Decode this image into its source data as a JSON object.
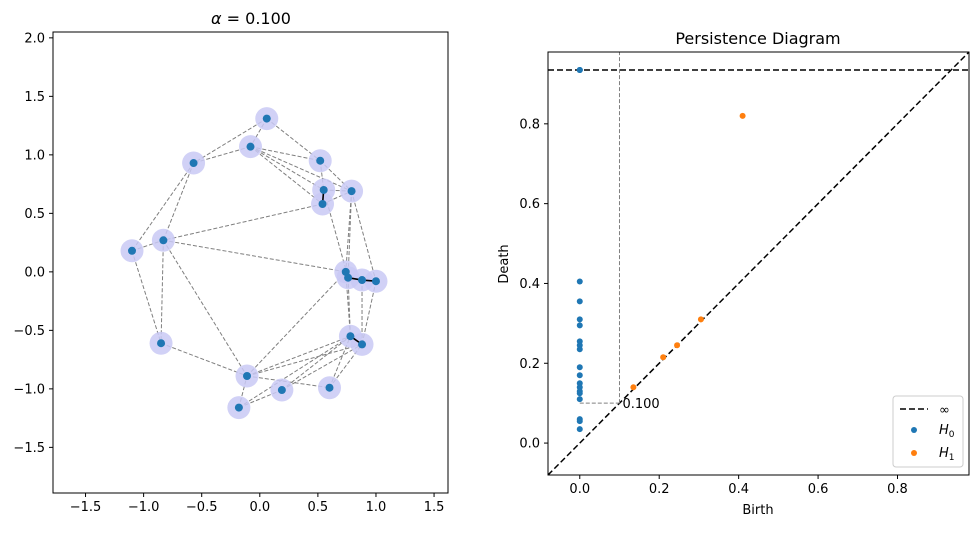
{
  "colors": {
    "h0": "#1f77b4",
    "h1": "#ff7f0e",
    "ball": "#c9c9f5",
    "edge": "#7f7f7f",
    "axis": "#000000"
  },
  "chart_data": [
    {
      "type": "scatter",
      "title": "α = 0.100",
      "title_alpha": "α",
      "title_value": " = 0.100",
      "xlabel": "",
      "ylabel": "",
      "xlim": [
        -1.78,
        1.62
      ],
      "ylim": [
        -1.89,
        2.05
      ],
      "xticks": [
        -1.5,
        -1.0,
        -0.5,
        0.0,
        0.5,
        1.0,
        1.5
      ],
      "xtick_labels": [
        "−1.5",
        "−1.0",
        "−0.5",
        "0.0",
        "0.5",
        "1.0",
        "1.5"
      ],
      "yticks": [
        -1.5,
        -1.0,
        -0.5,
        0.0,
        0.5,
        1.0,
        1.5,
        2.0
      ],
      "ytick_labels": [
        "−1.5",
        "−1.0",
        "−0.5",
        "0.0",
        "0.5",
        "1.0",
        "1.5",
        "2.0"
      ],
      "points": [
        [
          0.06,
          1.31
        ],
        [
          -0.08,
          1.07
        ],
        [
          -0.57,
          0.93
        ],
        [
          0.52,
          0.95
        ],
        [
          0.55,
          0.7
        ],
        [
          0.54,
          0.58
        ],
        [
          0.79,
          0.69
        ],
        [
          -1.1,
          0.18
        ],
        [
          -0.83,
          0.27
        ],
        [
          0.74,
          0.0
        ],
        [
          0.76,
          -0.05
        ],
        [
          0.88,
          -0.07
        ],
        [
          1.0,
          -0.08
        ],
        [
          0.78,
          -0.55
        ],
        [
          0.88,
          -0.62
        ],
        [
          -0.85,
          -0.61
        ],
        [
          -0.11,
          -0.89
        ],
        [
          0.19,
          -1.01
        ],
        [
          0.6,
          -0.99
        ],
        [
          -0.18,
          -1.16
        ]
      ],
      "edges": [
        [
          0,
          1
        ],
        [
          0,
          2
        ],
        [
          0,
          3
        ],
        [
          1,
          2
        ],
        [
          1,
          3
        ],
        [
          1,
          4
        ],
        [
          1,
          5
        ],
        [
          1,
          6
        ],
        [
          2,
          8
        ],
        [
          2,
          7
        ],
        [
          3,
          4
        ],
        [
          3,
          6
        ],
        [
          4,
          6
        ],
        [
          5,
          6
        ],
        [
          5,
          8
        ],
        [
          6,
          9
        ],
        [
          6,
          10
        ],
        [
          6,
          12
        ],
        [
          4,
          10
        ],
        [
          7,
          8
        ],
        [
          8,
          9
        ],
        [
          8,
          15
        ],
        [
          8,
          16
        ],
        [
          7,
          15
        ],
        [
          15,
          16
        ],
        [
          16,
          9
        ],
        [
          16,
          13
        ],
        [
          16,
          14
        ],
        [
          16,
          18
        ],
        [
          17,
          13
        ],
        [
          17,
          14
        ],
        [
          19,
          13
        ],
        [
          19,
          16
        ],
        [
          17,
          19
        ],
        [
          18,
          13
        ],
        [
          18,
          14
        ],
        [
          9,
          13
        ],
        [
          10,
          13
        ],
        [
          12,
          14
        ],
        [
          11,
          14
        ]
      ],
      "short_edges": [
        [
          4,
          5
        ],
        [
          9,
          10
        ],
        [
          10,
          11
        ],
        [
          11,
          12
        ],
        [
          13,
          14
        ]
      ]
    },
    {
      "type": "scatter",
      "title": "Persistence Diagram",
      "xlabel": "Birth",
      "ylabel": "Death",
      "xlim": [
        -0.08,
        0.98
      ],
      "ylim": [
        -0.08,
        0.98
      ],
      "xticks": [
        0.0,
        0.2,
        0.4,
        0.6,
        0.8
      ],
      "xtick_labels": [
        "0.0",
        "0.2",
        "0.4",
        "0.6",
        "0.8"
      ],
      "yticks": [
        0.0,
        0.2,
        0.4,
        0.6,
        0.8
      ],
      "ytick_labels": [
        "0.0",
        "0.2",
        "0.4",
        "0.6",
        "0.8"
      ],
      "infinity_level": 0.935,
      "alpha": 0.1,
      "alpha_label": "0.100",
      "series": [
        {
          "name": "H0",
          "label_base": "H",
          "label_sub": "0",
          "x": [
            0,
            0,
            0,
            0,
            0,
            0,
            0,
            0,
            0,
            0,
            0,
            0,
            0,
            0,
            0,
            0,
            0,
            0,
            0,
            0
          ],
          "y": [
            0.935,
            0.405,
            0.355,
            0.31,
            0.295,
            0.255,
            0.245,
            0.235,
            0.19,
            0.17,
            0.15,
            0.14,
            0.13,
            0.125,
            0.11,
            0.06,
            0.055,
            0.035,
            0.935,
            0.935
          ]
        },
        {
          "name": "H1",
          "label_base": "H",
          "label_sub": "1",
          "x": [
            0.41,
            0.305,
            0.245,
            0.21,
            0.135
          ],
          "y": [
            0.82,
            0.31,
            0.245,
            0.215,
            0.14
          ]
        }
      ],
      "legend": {
        "position": "lower-right",
        "infinity_label": "∞"
      }
    }
  ]
}
